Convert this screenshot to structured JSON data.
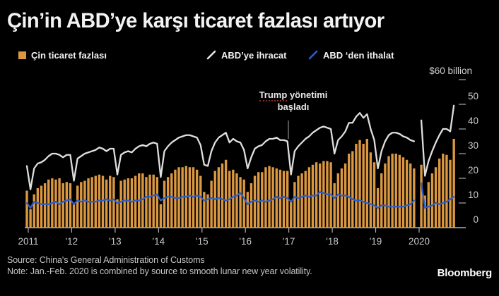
{
  "title": "Çin’in ABD’ye karşı ticaret fazlası artıyor",
  "legend": [
    {
      "label": "Çin ticaret fazlası",
      "type": "bar",
      "color": "#DB9840"
    },
    {
      "label": "ABD’ye ihracat",
      "type": "line",
      "color": "#DEDEDE"
    },
    {
      "label": "ABD ‘den ithalat",
      "type": "line",
      "color": "#2E5FC6"
    }
  ],
  "annotation": {
    "line1_word1": "Trump",
    "line1_word2": "yönetimi",
    "line2": "başladı"
  },
  "footer": {
    "source": "Source: China's General Administration of Customs",
    "note": "Note: Jan.-Feb. 2020 is combined by source to smooth lunar new year volatility.",
    "brand": "Bloomberg"
  },
  "chart_data": {
    "type": "bar",
    "subtype": "monthly bar + 2 line series, combo",
    "unit_label": "$60 billion",
    "x_start": "2011-01",
    "x_end": "2020-11",
    "x_tick_labels": [
      "2011",
      "'12",
      "'13",
      "'14",
      "'15",
      "'16",
      "'17",
      "'18",
      "'19",
      "2020"
    ],
    "y_ticks": [
      0,
      10,
      20,
      30,
      40,
      50
    ],
    "ylim": [
      0,
      60
    ],
    "grid": false,
    "legend_position": "top",
    "gap_note": "null at 2020-01: Jan.-Feb. 2020 reported combined, plotted as single point at Feb slot",
    "series": [
      {
        "name": "Çin ticaret fazlası",
        "type": "bar",
        "color": "#DB9840",
        "values": [
          15,
          7.5,
          13.5,
          16,
          17,
          18,
          19.5,
          20,
          19.5,
          20,
          18,
          18.5,
          18,
          9.5,
          17,
          18.5,
          19,
          20,
          20.5,
          21,
          21.5,
          21,
          19.5,
          21,
          20.5,
          11.5,
          19,
          19.5,
          20,
          20,
          21,
          22,
          22,
          20.5,
          21.5,
          21.5,
          20.5,
          9.5,
          19,
          20.5,
          22,
          23.5,
          24.5,
          24.5,
          25,
          24.5,
          24.5,
          23.5,
          21,
          14.5,
          13.5,
          19,
          23,
          24.5,
          26,
          27.5,
          23,
          23.5,
          22,
          20.5,
          19.5,
          14.5,
          18,
          21,
          22.5,
          22.5,
          24.5,
          25,
          24.5,
          24,
          23.5,
          23,
          23,
          11,
          18.5,
          21,
          22,
          23,
          24.5,
          25.5,
          26.5,
          26,
          27,
          27,
          26.5,
          18,
          22,
          24,
          26,
          30,
          31,
          34,
          35.5,
          34,
          36,
          30.5,
          26.5,
          16,
          22,
          26,
          29,
          30,
          30,
          29.5,
          28.5,
          27.5,
          26,
          24,
          null,
          25.5,
          13,
          18.5,
          22,
          24.5,
          28,
          30,
          29.5,
          27.5,
          36
        ]
      },
      {
        "name": "ABD'ye ihracat",
        "type": "line",
        "color": "#DEDEDE",
        "values": [
          25,
          15.5,
          24,
          26,
          26.5,
          27.5,
          29,
          30,
          30,
          29.5,
          28.5,
          29.5,
          29.5,
          19,
          28,
          29,
          30,
          30.5,
          31,
          31.5,
          32.5,
          32,
          31,
          32,
          32,
          21.5,
          29.5,
          30.5,
          31,
          30.5,
          32,
          33,
          33.5,
          33,
          34,
          34.5,
          34,
          20.5,
          31,
          33,
          34.5,
          35.5,
          36.5,
          37,
          37.5,
          37.5,
          37,
          36.5,
          33.5,
          25.5,
          25,
          31,
          34.5,
          36.5,
          37.5,
          38.5,
          34.5,
          36,
          35,
          34.5,
          31.5,
          24,
          28.5,
          32,
          33,
          33.5,
          35,
          36,
          36,
          36.5,
          35.5,
          35.5,
          35,
          21.5,
          31,
          33,
          34.5,
          36,
          37,
          38.5,
          39.5,
          40.5,
          41,
          40.5,
          40,
          30,
          35.5,
          37,
          39,
          42.5,
          42.5,
          45,
          46.5,
          44.5,
          46,
          40,
          35.5,
          24,
          31,
          35,
          37.5,
          38.5,
          38.5,
          38,
          37,
          36.5,
          35.5,
          35,
          null,
          43.5,
          21,
          27,
          31,
          34.5,
          37.5,
          40,
          40,
          39,
          49.5
        ]
      },
      {
        "name": "ABD 'den ithalat",
        "type": "line",
        "color": "#2E5FC6",
        "values": [
          10,
          8,
          10.5,
          10,
          9.5,
          9.5,
          9.5,
          10,
          10.5,
          9.5,
          10.5,
          11,
          11.5,
          9.5,
          11,
          10.5,
          11,
          10.5,
          10.5,
          10.5,
          11,
          11,
          11.5,
          11,
          11.5,
          10,
          10.5,
          11,
          11,
          10.5,
          11,
          11,
          11.5,
          12.5,
          12.5,
          13,
          13.5,
          11,
          12,
          12.5,
          12.5,
          12,
          12,
          12.5,
          12.5,
          13,
          12.5,
          13,
          12.5,
          11,
          11.5,
          12,
          11.5,
          12,
          11.5,
          11,
          11.5,
          12.5,
          13,
          14,
          12,
          9.5,
          10.5,
          11,
          10.5,
          11,
          10.5,
          11,
          11.5,
          12.5,
          12,
          12.5,
          12,
          10.5,
          12.5,
          12,
          12.5,
          13,
          12.5,
          13,
          13,
          14.5,
          14,
          13.5,
          13.5,
          12,
          13.5,
          13,
          13,
          12.5,
          11.5,
          11,
          11,
          10.5,
          10,
          9.5,
          9,
          8,
          9,
          9,
          8.5,
          8.5,
          8.5,
          8.5,
          8.5,
          9,
          9.5,
          11,
          null,
          18,
          8,
          8.5,
          9,
          10,
          9.5,
          10,
          10.5,
          11.5,
          12.5
        ]
      }
    ]
  }
}
